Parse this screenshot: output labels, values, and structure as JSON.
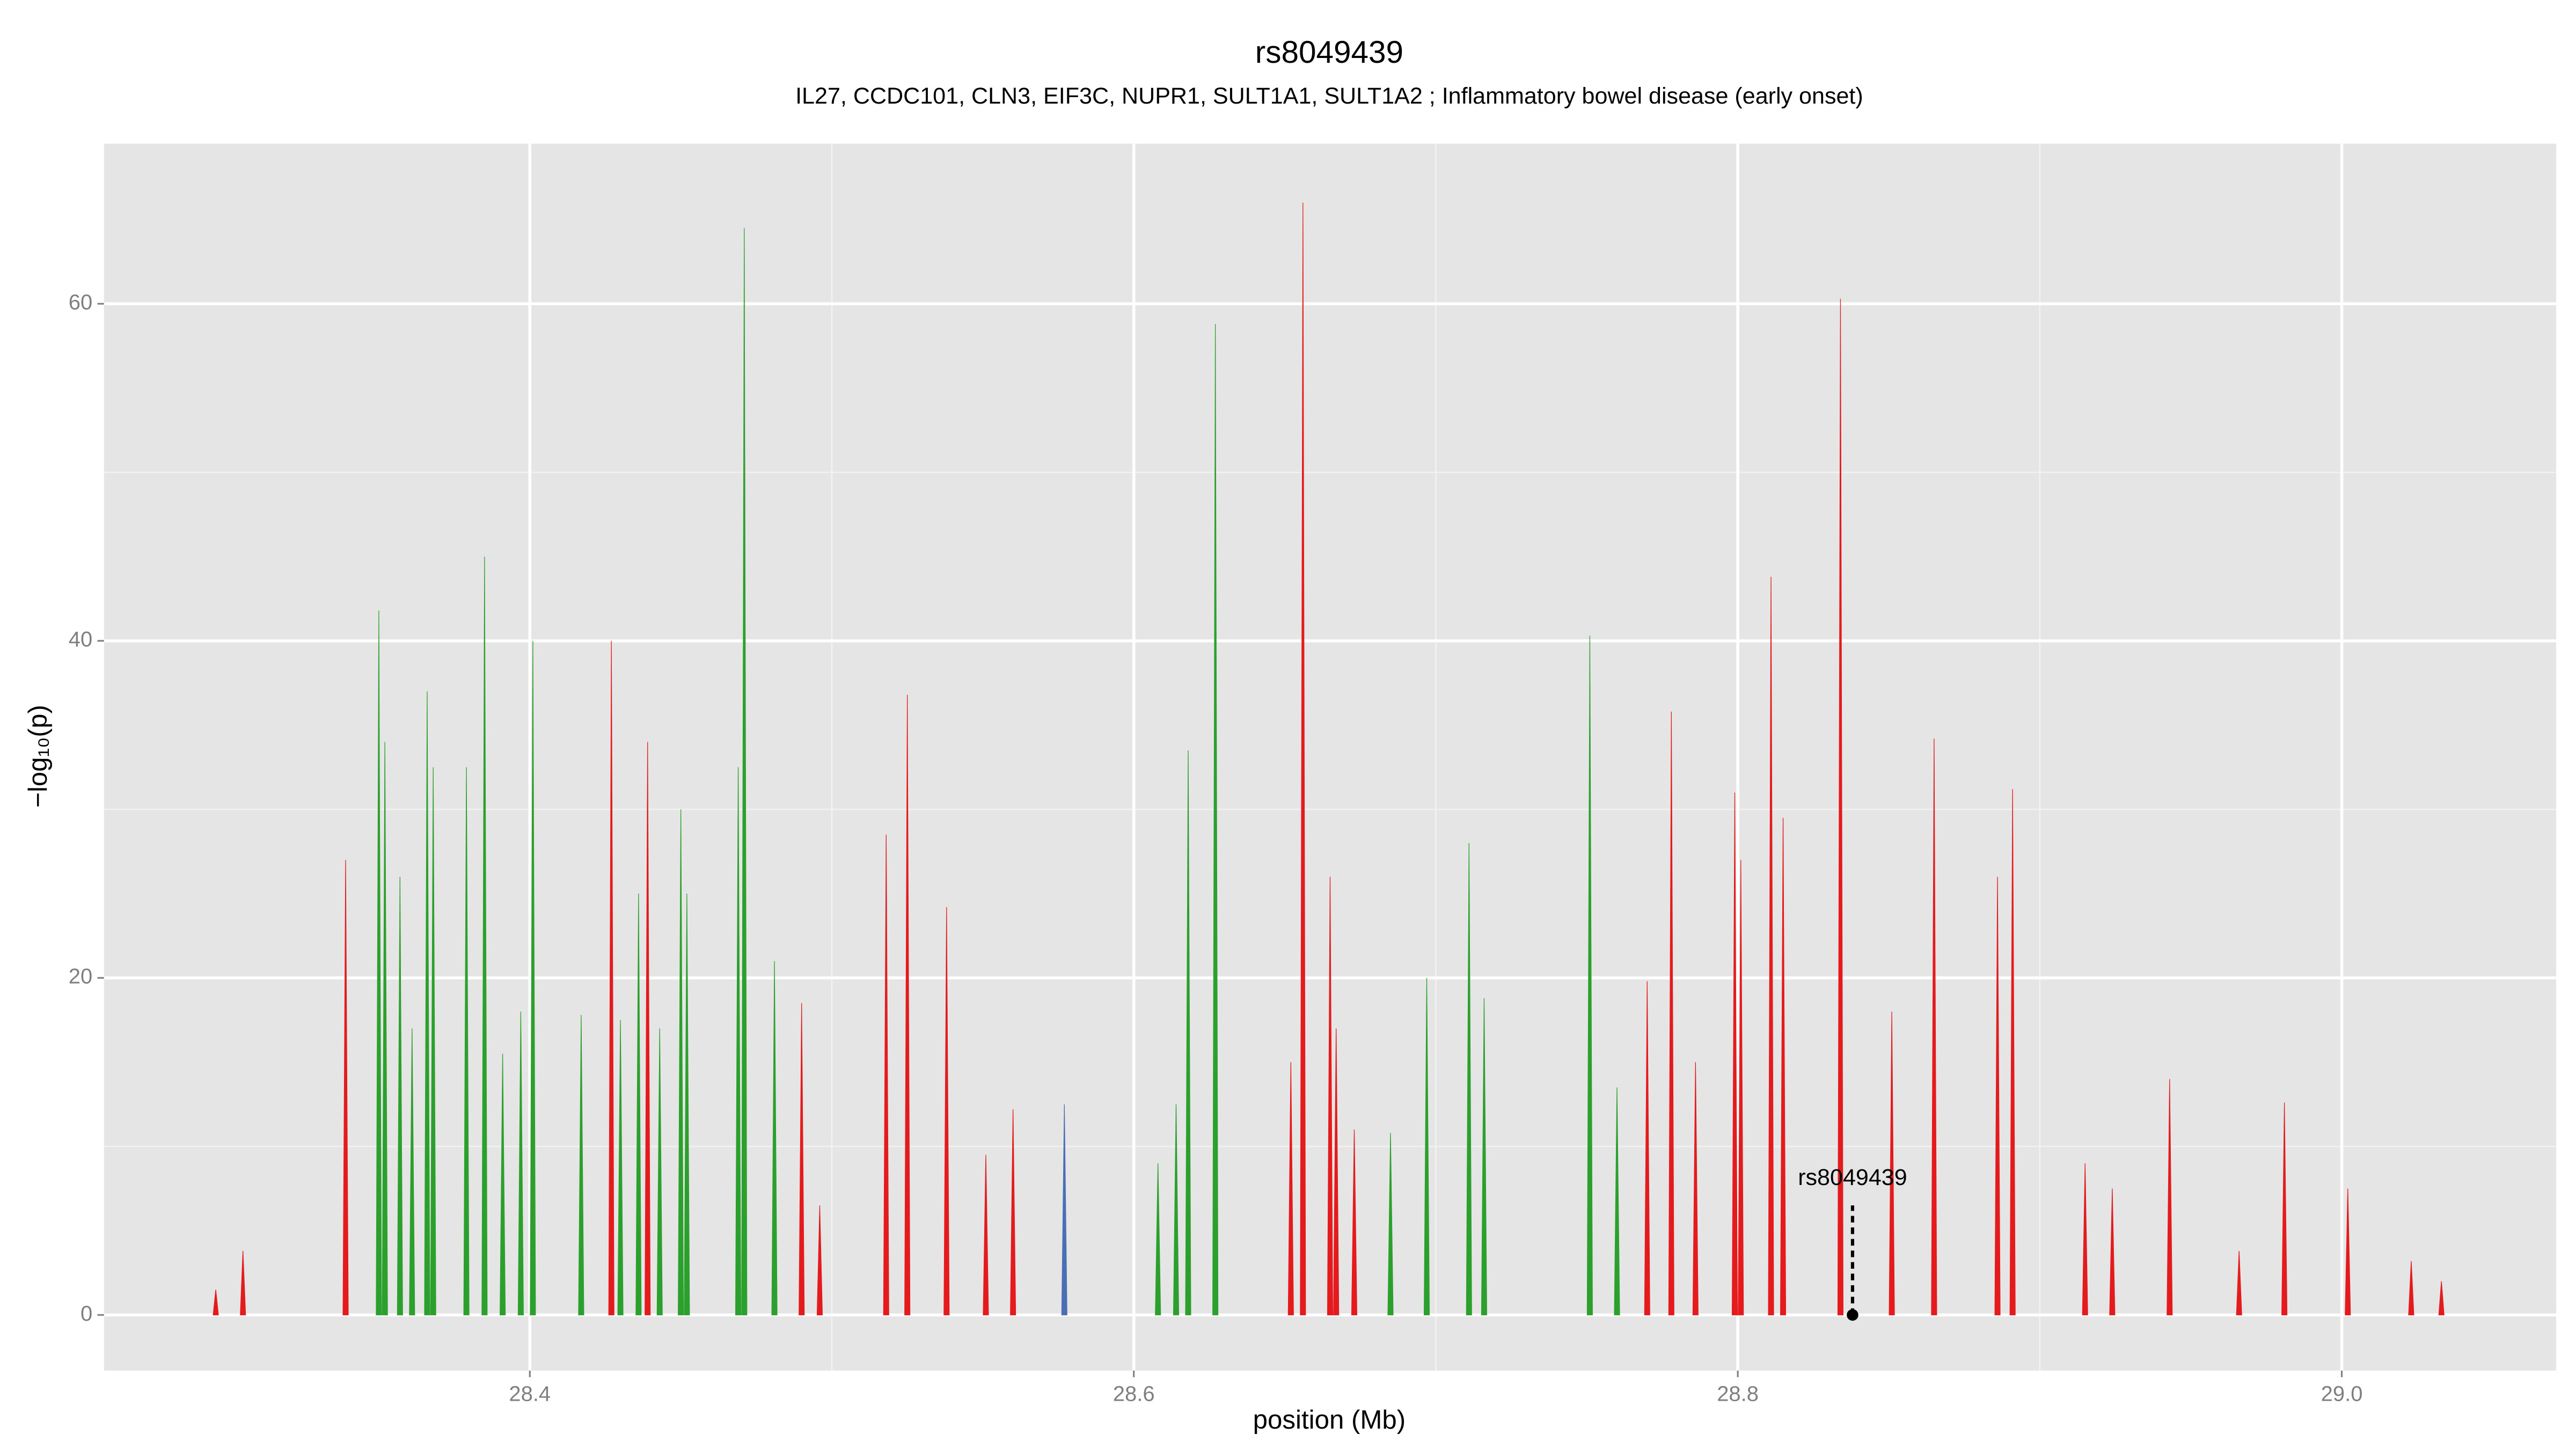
{
  "chart_data": {
    "type": "spike",
    "title": "rs8049439",
    "subtitle": "IL27, CCDC101, CLN3, EIF3C, NUPR1, SULT1A1, SULT1A2 ; Inflammatory bowel disease (early onset)",
    "x_label": "position (Mb)",
    "y_label": "−log₁₀(p)",
    "xlim": [
      28.259,
      29.071
    ],
    "ylim": [
      -3.3,
      69.5
    ],
    "xticks": [
      28.4,
      28.6,
      28.8,
      {
        "value": 29,
        "label": "29.0"
      }
    ],
    "yticks": [
      0,
      20,
      40,
      60
    ],
    "grid": true,
    "series": [
      {
        "color": "#2ca02c",
        "x": [
          28.35,
          28.352,
          28.357,
          28.361,
          28.366,
          28.368,
          28.379,
          28.385,
          28.391,
          28.397,
          28.401,
          28.417,
          28.43,
          28.436,
          28.443,
          28.45,
          28.452,
          28.469,
          28.471,
          28.481,
          28.608,
          28.614,
          28.618,
          28.627,
          28.685,
          28.697,
          28.711,
          28.716,
          28.751,
          28.76
        ],
        "values": [
          41.8,
          34,
          26,
          17,
          37,
          32.5,
          32.5,
          45,
          15.5,
          18,
          40,
          17.8,
          17.5,
          25,
          17,
          30,
          25,
          32.5,
          64.5,
          21,
          9,
          12.5,
          33.5,
          58.8,
          10.8,
          20,
          28,
          18.8,
          40.3,
          13.5
        ]
      },
      {
        "color": "#e41a1c",
        "x": [
          28.296,
          28.305,
          28.339,
          28.427,
          28.439,
          28.49,
          28.496,
          28.518,
          28.525,
          28.538,
          28.551,
          28.56,
          28.652,
          28.656,
          28.665,
          28.667,
          28.673,
          28.77,
          28.778,
          28.786,
          28.799,
          28.801,
          28.811,
          28.815,
          28.834,
          28.851,
          28.865,
          28.886,
          28.891,
          28.915,
          28.924,
          28.943,
          28.966,
          28.981,
          29.002,
          29.023,
          29.033
        ],
        "values": [
          1.5,
          3.8,
          27,
          40,
          34,
          18.5,
          6.5,
          28.5,
          36.8,
          24.2,
          9.5,
          12.2,
          15,
          66,
          26,
          17,
          11,
          19.8,
          35.8,
          15,
          31,
          27,
          43.8,
          29.5,
          60.3,
          18,
          34.2,
          26,
          31.2,
          9,
          7.5,
          14,
          3.8,
          12.6,
          7.5,
          3.2,
          2
        ]
      },
      {
        "color": "#4a6fb5",
        "x": [
          28.577
        ],
        "values": [
          12.5
        ]
      }
    ],
    "annotation": {
      "label": "rs8049439",
      "x": 28.838,
      "y": 0,
      "line_top": 6.5
    }
  }
}
